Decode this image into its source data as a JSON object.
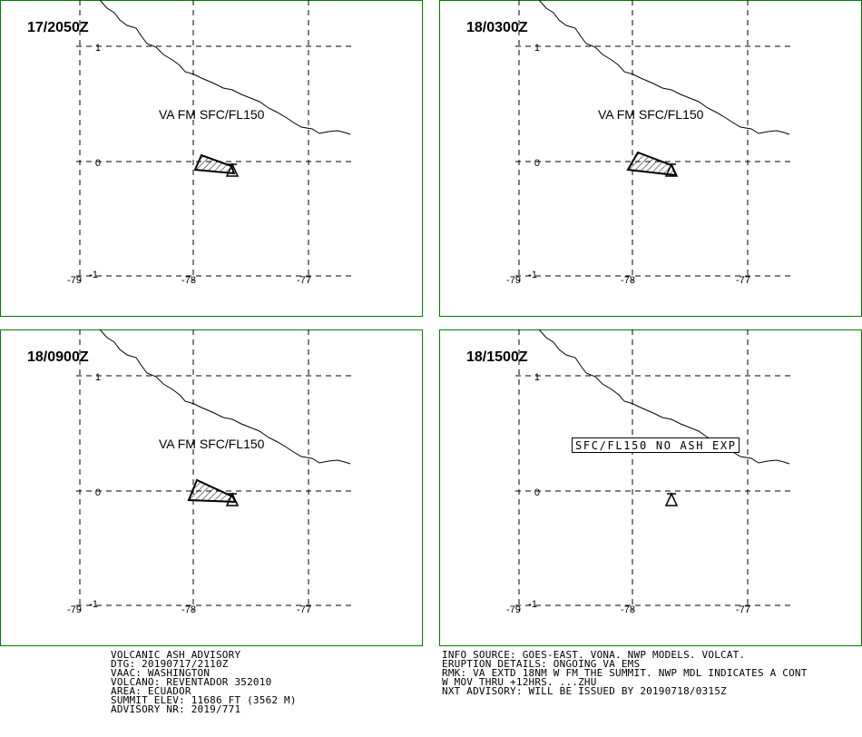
{
  "panels": [
    {
      "time": "17/2050Z",
      "annotation": "VA FM SFC/FL150",
      "lat_labels": [
        "1",
        "0",
        "-1"
      ],
      "lon_labels": [
        "-79",
        "-78",
        "-77"
      ]
    },
    {
      "time": "18/0300Z",
      "annotation": "VA FM SFC/FL150",
      "lat_labels": [
        "1",
        "0",
        "-1"
      ],
      "lon_labels": [
        "-79",
        "-78",
        "-77"
      ]
    },
    {
      "time": "18/0900Z",
      "annotation": "VA FM SFC/FL150",
      "lat_labels": [
        "1",
        "0",
        "-1"
      ],
      "lon_labels": [
        "-79",
        "-78",
        "-77"
      ]
    },
    {
      "time": "18/1500Z",
      "annotation": "SFC/FL150 NO ASH EXP",
      "lat_labels": [
        "1",
        "0",
        "-1"
      ],
      "lon_labels": [
        "-79",
        "-78",
        "-77"
      ]
    }
  ],
  "footer_left": [
    "VOLCANIC ASH ADVISORY",
    "DTG: 20190717/2110Z",
    "VAAC: WASHINGTON",
    "VOLCANO: REVENTADOR 352010",
    "AREA: ECUADOR",
    "SUMMIT ELEV: 11686 FT (3562 M)",
    "ADVISORY NR: 2019/771"
  ],
  "footer_right": [
    "INFO SOURCE: GOES-EAST. VONA. NWP MODELS. VOLCAT.",
    "ERUPTION DETAILS: ONGOING VA EMS",
    "RMK: VA EXTD 18NM W FM THE SUMMIT. NWP MDL INDICATES A CONT",
    "W MOV THRU +12HRS. ...ZHU",
    "NXT ADVISORY: WILL BE ISSUED BY 20190718/0315Z"
  ]
}
